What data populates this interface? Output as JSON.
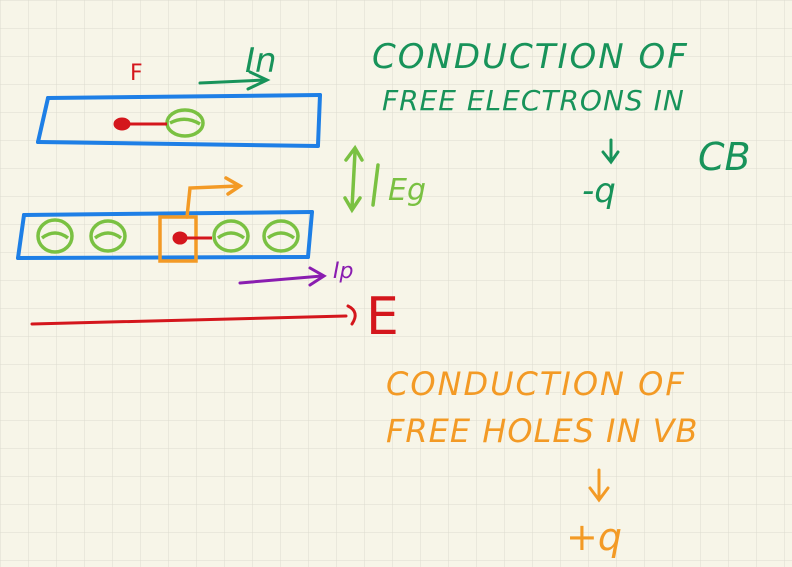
{
  "colors": {
    "paper": "#f7f5e8",
    "grid": "#dcdccf",
    "blue": "#1e7fe6",
    "green": "#18935a",
    "lime": "#7ac142",
    "red": "#d4161c",
    "orange": "#f39a25",
    "purple": "#8a1db0"
  },
  "labels": {
    "force": "F",
    "current_n": "In",
    "current_p": "Ip",
    "energy_gap": "Eg",
    "field": "E",
    "electrons_line1": "CONDUCTION OF",
    "electrons_line2": "FREE ELECTRONS IN",
    "electrons_band": "CB",
    "electrons_charge": "-q",
    "holes_line1": "CONDUCTION OF",
    "holes_line2": "FREE HOLES IN VB",
    "holes_charge": "+q"
  }
}
